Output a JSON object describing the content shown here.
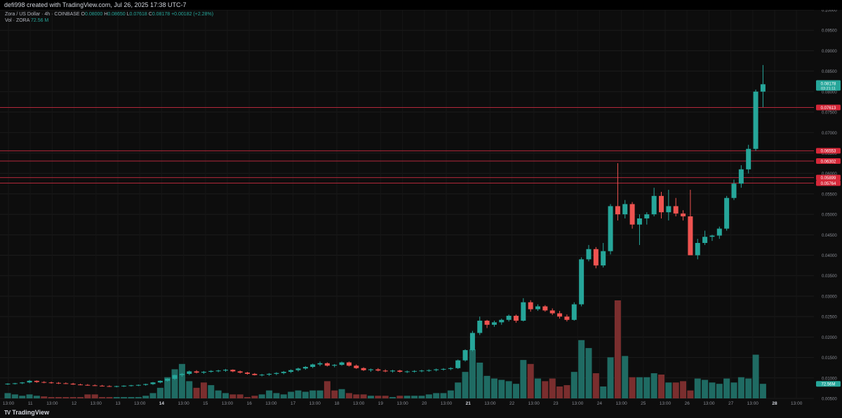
{
  "header": {
    "credit": "defi998 created with TradingView.com, Jul 26, 2025 17:38 UTC-7"
  },
  "legend": {
    "symbol": "Zora / US Dollar · 4h · COINBASE",
    "o_label": "O",
    "o_value": "0.08000",
    "h_label": "H",
    "h_value": "0.08650",
    "l_label": "L",
    "l_value": "0.07618",
    "c_label": "C",
    "c_value": "0.08178",
    "change": "+0.00182 (+2.28%)",
    "vol_label": "Vol · ZORA",
    "vol_value": "72.56 M"
  },
  "footer": {
    "brand": "TradingView",
    "logo": "tradingview-logo-icon"
  },
  "colors": {
    "up": "#26a69a",
    "down": "#ef5350",
    "vol_up": "#1f6b63",
    "vol_down": "#7a2e2e",
    "background": "#0d0d0d",
    "hline": "#b2283a"
  },
  "chart_data": {
    "type": "candlestick",
    "ylim": [
      0.005,
      0.1
    ],
    "y_ticks": [
      "0.10000",
      "0.09500",
      "0.09000",
      "0.08500",
      "0.08000",
      "0.07500",
      "0.07000",
      "0.06500",
      "0.06000",
      "0.05500",
      "0.05000",
      "0.04500",
      "0.04000",
      "0.03500",
      "0.03000",
      "0.02500",
      "0.02000",
      "0.01500",
      "0.01000",
      "0.00500"
    ],
    "x_ticks": [
      "13:00",
      "11",
      "13:00",
      "12",
      "13:00",
      "13",
      "13:00",
      "14",
      "13:00",
      "15",
      "13:00",
      "16",
      "13:00",
      "17",
      "13:00",
      "18",
      "13:00",
      "19",
      "13:00",
      "20",
      "13:00",
      "21",
      "13:00",
      "22",
      "13:00",
      "23",
      "13:00",
      "24",
      "13:00",
      "25",
      "13:00",
      "26",
      "13:00",
      "27",
      "13:00",
      "28",
      "13:00"
    ],
    "x_ticks_bold": [
      "14",
      "21",
      "28"
    ],
    "price_label": "0.08178",
    "countdown": "03:21:11",
    "volume_label": "72.56M",
    "horizontal_levels": [
      {
        "value": 0.07613,
        "label": "0.07613"
      },
      {
        "value": 0.06553,
        "label": "0.06553"
      },
      {
        "value": 0.06302,
        "label": "0.06302"
      },
      {
        "value": 0.05899,
        "label": "0.05899"
      },
      {
        "value": 0.05764,
        "label": "0.05764"
      }
    ],
    "candles": [
      [
        0.0085,
        0.0087,
        0.0083,
        0.0086
      ],
      [
        0.0086,
        0.0088,
        0.0084,
        0.0087
      ],
      [
        0.0087,
        0.009,
        0.0085,
        0.0089
      ],
      [
        0.0089,
        0.0095,
        0.0087,
        0.0093
      ],
      [
        0.0093,
        0.0094,
        0.0088,
        0.009
      ],
      [
        0.009,
        0.0092,
        0.0087,
        0.0089
      ],
      [
        0.0089,
        0.0091,
        0.0086,
        0.0088
      ],
      [
        0.0088,
        0.009,
        0.0085,
        0.0087
      ],
      [
        0.0087,
        0.0089,
        0.0085,
        0.0086
      ],
      [
        0.0086,
        0.0088,
        0.0083,
        0.0084
      ],
      [
        0.0084,
        0.0086,
        0.0082,
        0.0083
      ],
      [
        0.0083,
        0.0085,
        0.0081,
        0.0082
      ],
      [
        0.0082,
        0.0084,
        0.008,
        0.0081
      ],
      [
        0.0081,
        0.0083,
        0.0079,
        0.008
      ],
      [
        0.008,
        0.0082,
        0.0078,
        0.0079
      ],
      [
        0.0079,
        0.0081,
        0.0077,
        0.008
      ],
      [
        0.008,
        0.0082,
        0.0078,
        0.0081
      ],
      [
        0.0081,
        0.0083,
        0.0079,
        0.0082
      ],
      [
        0.0082,
        0.0084,
        0.008,
        0.0083
      ],
      [
        0.0083,
        0.0086,
        0.0081,
        0.0085
      ],
      [
        0.0085,
        0.009,
        0.0083,
        0.0089
      ],
      [
        0.0089,
        0.0094,
        0.0087,
        0.0093
      ],
      [
        0.0093,
        0.0099,
        0.0091,
        0.0098
      ],
      [
        0.0098,
        0.0108,
        0.0095,
        0.0107
      ],
      [
        0.0107,
        0.0112,
        0.0103,
        0.011
      ],
      [
        0.011,
        0.0118,
        0.0107,
        0.0116
      ],
      [
        0.0116,
        0.0119,
        0.0111,
        0.0113
      ],
      [
        0.0113,
        0.0117,
        0.011,
        0.0115
      ],
      [
        0.0115,
        0.0119,
        0.0113,
        0.0117
      ],
      [
        0.0117,
        0.012,
        0.0114,
        0.0118
      ],
      [
        0.0118,
        0.0122,
        0.0115,
        0.012
      ],
      [
        0.012,
        0.0121,
        0.0114,
        0.0116
      ],
      [
        0.0116,
        0.0118,
        0.0111,
        0.0113
      ],
      [
        0.0113,
        0.0115,
        0.0108,
        0.011
      ],
      [
        0.011,
        0.0112,
        0.0106,
        0.0107
      ],
      [
        0.0107,
        0.011,
        0.0104,
        0.0108
      ],
      [
        0.0108,
        0.0112,
        0.0105,
        0.011
      ],
      [
        0.011,
        0.0114,
        0.0107,
        0.0112
      ],
      [
        0.0112,
        0.0117,
        0.0109,
        0.0115
      ],
      [
        0.0115,
        0.0121,
        0.0112,
        0.0119
      ],
      [
        0.0119,
        0.0125,
        0.0116,
        0.0123
      ],
      [
        0.0123,
        0.0129,
        0.012,
        0.0127
      ],
      [
        0.0127,
        0.0135,
        0.0124,
        0.0133
      ],
      [
        0.0133,
        0.014,
        0.0129,
        0.0136
      ],
      [
        0.0136,
        0.0138,
        0.0128,
        0.013
      ],
      [
        0.013,
        0.0134,
        0.0126,
        0.0132
      ],
      [
        0.0132,
        0.014,
        0.013,
        0.0138
      ],
      [
        0.0138,
        0.014,
        0.0128,
        0.013
      ],
      [
        0.013,
        0.0133,
        0.0122,
        0.0124
      ],
      [
        0.0124,
        0.0126,
        0.0117,
        0.0119
      ],
      [
        0.0119,
        0.0123,
        0.0115,
        0.0121
      ],
      [
        0.0121,
        0.0124,
        0.0116,
        0.0118
      ],
      [
        0.0118,
        0.0121,
        0.0114,
        0.0116
      ],
      [
        0.0116,
        0.012,
        0.0113,
        0.0118
      ],
      [
        0.0118,
        0.012,
        0.0113,
        0.0115
      ],
      [
        0.0115,
        0.0118,
        0.0112,
        0.0116
      ],
      [
        0.0116,
        0.0119,
        0.0113,
        0.0117
      ],
      [
        0.0117,
        0.012,
        0.0114,
        0.0118
      ],
      [
        0.0118,
        0.0121,
        0.0115,
        0.0119
      ],
      [
        0.0119,
        0.0123,
        0.0116,
        0.0121
      ],
      [
        0.0121,
        0.0124,
        0.0118,
        0.0122
      ],
      [
        0.0122,
        0.0126,
        0.0119,
        0.0124
      ],
      [
        0.0124,
        0.0145,
        0.0122,
        0.0143
      ],
      [
        0.0143,
        0.017,
        0.014,
        0.0168
      ],
      [
        0.0168,
        0.0215,
        0.0165,
        0.021
      ],
      [
        0.021,
        0.025,
        0.0205,
        0.024
      ],
      [
        0.024,
        0.0242,
        0.0222,
        0.023
      ],
      [
        0.023,
        0.024,
        0.0225,
        0.0236
      ],
      [
        0.0236,
        0.0245,
        0.023,
        0.0242
      ],
      [
        0.0242,
        0.0255,
        0.0238,
        0.0252
      ],
      [
        0.0252,
        0.0255,
        0.0235,
        0.024
      ],
      [
        0.024,
        0.0295,
        0.0238,
        0.0285
      ],
      [
        0.0285,
        0.029,
        0.0262,
        0.0268
      ],
      [
        0.0268,
        0.028,
        0.0264,
        0.0275
      ],
      [
        0.0275,
        0.0278,
        0.0262,
        0.0265
      ],
      [
        0.0265,
        0.027,
        0.0254,
        0.0258
      ],
      [
        0.0258,
        0.0264,
        0.0245,
        0.025
      ],
      [
        0.025,
        0.0255,
        0.0238,
        0.0242
      ],
      [
        0.0242,
        0.0285,
        0.024,
        0.028
      ],
      [
        0.028,
        0.0395,
        0.0275,
        0.039
      ],
      [
        0.039,
        0.0425,
        0.0385,
        0.0415
      ],
      [
        0.0415,
        0.042,
        0.0368,
        0.0375
      ],
      [
        0.0375,
        0.043,
        0.037,
        0.041
      ],
      [
        0.041,
        0.0525,
        0.0402,
        0.052
      ],
      [
        0.052,
        0.0625,
        0.0485,
        0.05
      ],
      [
        0.05,
        0.0535,
        0.049,
        0.0525
      ],
      [
        0.0525,
        0.053,
        0.0465,
        0.0475
      ],
      [
        0.0475,
        0.05,
        0.0425,
        0.049
      ],
      [
        0.049,
        0.0505,
        0.0475,
        0.05
      ],
      [
        0.05,
        0.0565,
        0.0495,
        0.0545
      ],
      [
        0.0545,
        0.0555,
        0.049,
        0.0505
      ],
      [
        0.0505,
        0.056,
        0.0485,
        0.052
      ],
      [
        0.052,
        0.054,
        0.0495,
        0.0502
      ],
      [
        0.0502,
        0.051,
        0.0485,
        0.0495
      ],
      [
        0.0495,
        0.056,
        0.04,
        0.04
      ],
      [
        0.04,
        0.044,
        0.039,
        0.043
      ],
      [
        0.043,
        0.046,
        0.0425,
        0.0445
      ],
      [
        0.0445,
        0.045,
        0.0435,
        0.0448
      ],
      [
        0.0448,
        0.047,
        0.044,
        0.0465
      ],
      [
        0.0465,
        0.0545,
        0.046,
        0.054
      ],
      [
        0.054,
        0.0585,
        0.0535,
        0.0575
      ],
      [
        0.0575,
        0.062,
        0.0565,
        0.061
      ],
      [
        0.061,
        0.067,
        0.06,
        0.066
      ],
      [
        0.066,
        0.0805,
        0.0655,
        0.08
      ],
      [
        0.08,
        0.0865,
        0.0762,
        0.0818
      ]
    ],
    "volumes": [
      [
        0.4,
        "u"
      ],
      [
        0.3,
        "u"
      ],
      [
        0.2,
        "u"
      ],
      [
        0.3,
        "u"
      ],
      [
        0.2,
        "u"
      ],
      [
        0.15,
        "d"
      ],
      [
        0.1,
        "d"
      ],
      [
        0.1,
        "d"
      ],
      [
        0.1,
        "d"
      ],
      [
        0.1,
        "d"
      ],
      [
        0.1,
        "d"
      ],
      [
        0.3,
        "d"
      ],
      [
        0.3,
        "d"
      ],
      [
        0.1,
        "d"
      ],
      [
        0.1,
        "d"
      ],
      [
        0.1,
        "u"
      ],
      [
        0.1,
        "u"
      ],
      [
        0.1,
        "u"
      ],
      [
        0.1,
        "u"
      ],
      [
        0.2,
        "u"
      ],
      [
        0.4,
        "u"
      ],
      [
        0.8,
        "u"
      ],
      [
        1.6,
        "u"
      ],
      [
        2.2,
        "u"
      ],
      [
        2.6,
        "u"
      ],
      [
        1.3,
        "u"
      ],
      [
        0.8,
        "d"
      ],
      [
        1.2,
        "d"
      ],
      [
        1.0,
        "u"
      ],
      [
        0.6,
        "u"
      ],
      [
        0.4,
        "u"
      ],
      [
        0.3,
        "d"
      ],
      [
        0.3,
        "d"
      ],
      [
        0.1,
        "d"
      ],
      [
        0.2,
        "d"
      ],
      [
        0.3,
        "u"
      ],
      [
        0.6,
        "u"
      ],
      [
        0.4,
        "u"
      ],
      [
        0.3,
        "u"
      ],
      [
        0.5,
        "u"
      ],
      [
        0.6,
        "u"
      ],
      [
        0.5,
        "u"
      ],
      [
        0.6,
        "u"
      ],
      [
        0.6,
        "u"
      ],
      [
        1.3,
        "d"
      ],
      [
        0.6,
        "d"
      ],
      [
        0.7,
        "u"
      ],
      [
        0.4,
        "d"
      ],
      [
        0.3,
        "d"
      ],
      [
        0.3,
        "d"
      ],
      [
        0.2,
        "u"
      ],
      [
        0.2,
        "d"
      ],
      [
        0.2,
        "d"
      ],
      [
        0.1,
        "u"
      ],
      [
        0.2,
        "d"
      ],
      [
        0.2,
        "u"
      ],
      [
        0.2,
        "u"
      ],
      [
        0.2,
        "u"
      ],
      [
        0.3,
        "u"
      ],
      [
        0.4,
        "u"
      ],
      [
        0.4,
        "u"
      ],
      [
        0.6,
        "u"
      ],
      [
        1.2,
        "u"
      ],
      [
        2.0,
        "u"
      ],
      [
        3.7,
        "u"
      ],
      [
        2.7,
        "u"
      ],
      [
        1.7,
        "u"
      ],
      [
        1.5,
        "u"
      ],
      [
        1.4,
        "u"
      ],
      [
        1.3,
        "u"
      ],
      [
        1.1,
        "u"
      ],
      [
        2.9,
        "u"
      ],
      [
        2.6,
        "d"
      ],
      [
        1.5,
        "u"
      ],
      [
        1.3,
        "d"
      ],
      [
        1.5,
        "d"
      ],
      [
        0.9,
        "d"
      ],
      [
        1.0,
        "d"
      ],
      [
        2.0,
        "u"
      ],
      [
        4.4,
        "u"
      ],
      [
        3.8,
        "u"
      ],
      [
        1.9,
        "d"
      ],
      [
        0.9,
        "u"
      ],
      [
        3.1,
        "u"
      ],
      [
        7.4,
        "d"
      ],
      [
        3.2,
        "u"
      ],
      [
        1.6,
        "d"
      ],
      [
        1.6,
        "u"
      ],
      [
        1.6,
        "u"
      ],
      [
        1.9,
        "u"
      ],
      [
        1.8,
        "d"
      ],
      [
        1.2,
        "u"
      ],
      [
        1.2,
        "d"
      ],
      [
        1.3,
        "d"
      ],
      [
        0.6,
        "d"
      ],
      [
        1.5,
        "u"
      ],
      [
        1.4,
        "u"
      ],
      [
        1.2,
        "u"
      ],
      [
        1.1,
        "u"
      ],
      [
        1.5,
        "u"
      ],
      [
        1.2,
        "u"
      ],
      [
        1.6,
        "u"
      ],
      [
        1.5,
        "u"
      ],
      [
        3.3,
        "u"
      ],
      [
        1.1,
        "u"
      ]
    ]
  }
}
